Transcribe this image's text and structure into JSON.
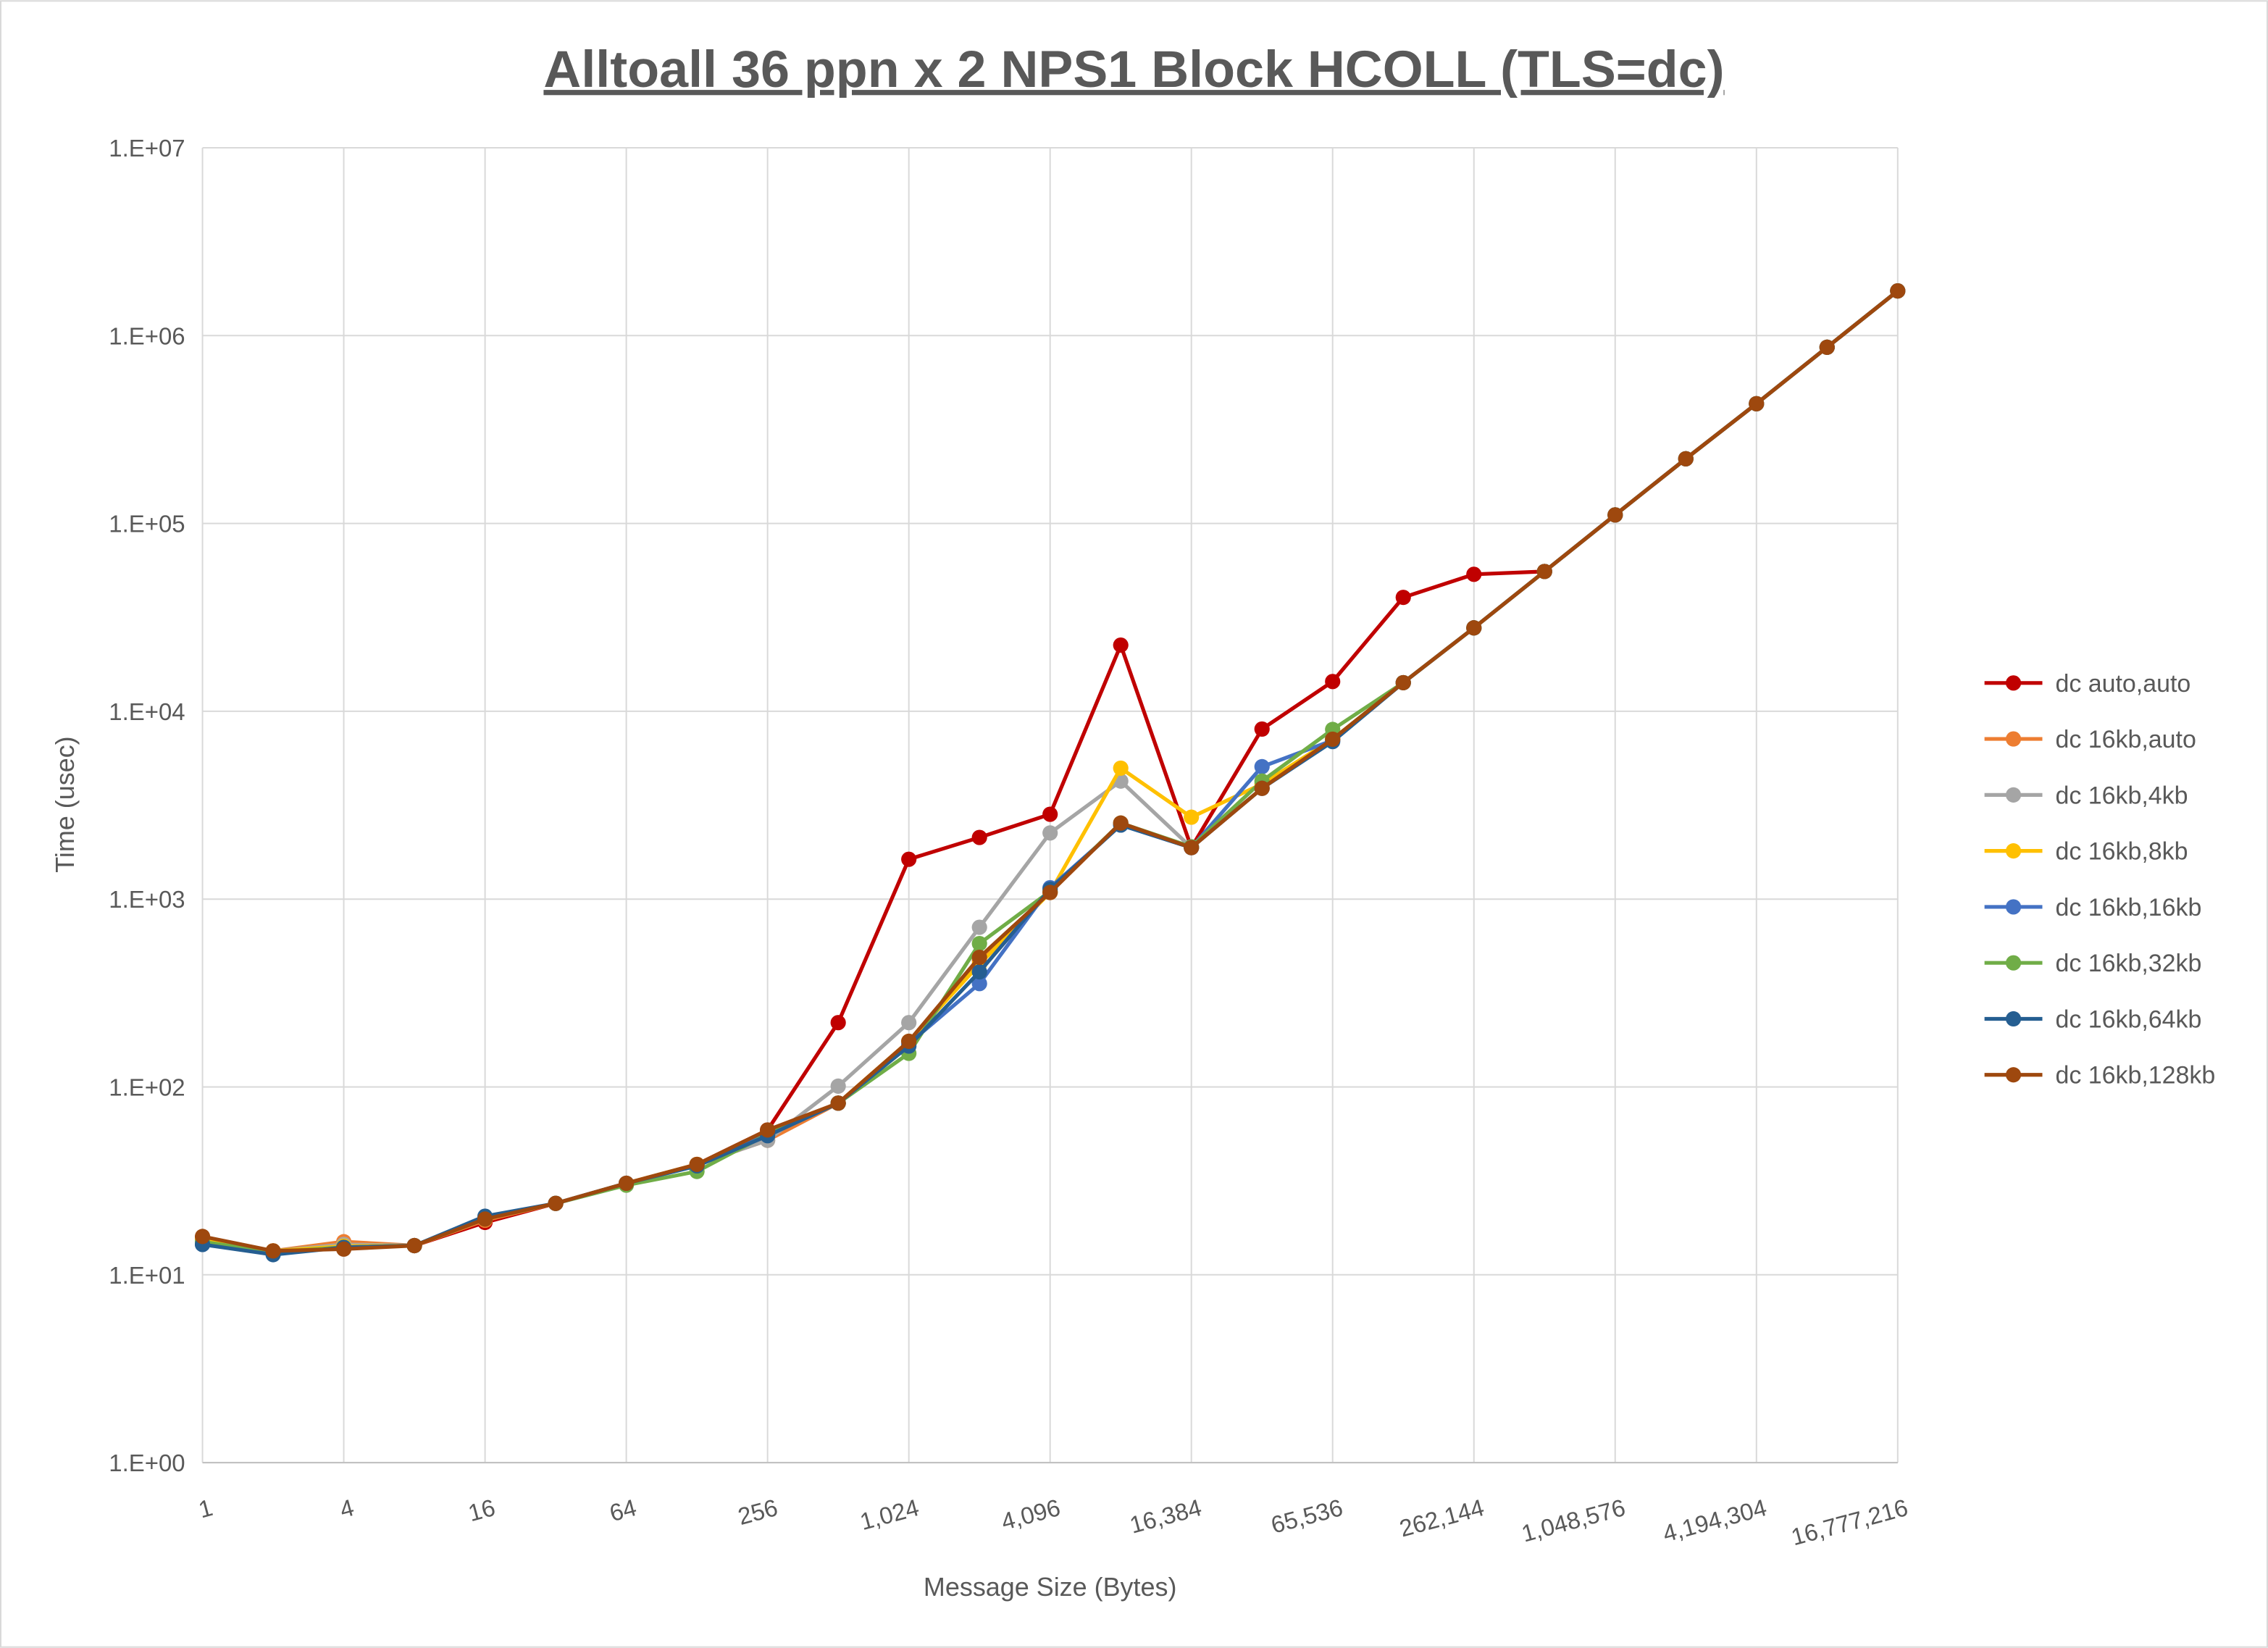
{
  "chart_data": {
    "type": "line",
    "title": "Alltoall 36 ppn x 2 NPS1 Block HCOLL (TLS=dc)",
    "xlabel": "Message Size (Bytes)",
    "ylabel": "Time (usec)",
    "x_scale": "log2",
    "y_scale": "log10",
    "xlim": [
      1,
      16777216
    ],
    "ylim": [
      1,
      10000000
    ],
    "grid": true,
    "legend_position": "right",
    "x": [
      1,
      2,
      4,
      8,
      16,
      32,
      64,
      128,
      256,
      512,
      1024,
      2048,
      4096,
      8192,
      16384,
      32768,
      65536,
      131072,
      262144,
      524288,
      1048576,
      2097152,
      4194304,
      8388608,
      16777216
    ],
    "x_tick_labels": [
      "1",
      "4",
      "16",
      "64",
      "256",
      "1,024",
      "4,096",
      "16,384",
      "65,536",
      "262,144",
      "1,048,576",
      "4,194,304",
      "16,777,216"
    ],
    "y_tick_labels": [
      "1.E+00",
      "1.E+01",
      "1.E+02",
      "1.E+03",
      "1.E+04",
      "1.E+05",
      "1.E+06",
      "1.E+07"
    ],
    "series": [
      {
        "name": "dc auto,auto",
        "color": "#C00000",
        "values": [
          15.5,
          13.4,
          14.2,
          14.3,
          19,
          24,
          30.7,
          38.7,
          59,
          220,
          1630,
          2130,
          2830,
          22500,
          1880,
          8040,
          14400,
          40400,
          53600,
          55500,
          111000,
          221000,
          434000,
          867000,
          1730000
        ]
      },
      {
        "name": "dc 16kb,auto",
        "color": "#ED7D31",
        "values": [
          15.5,
          13.4,
          15,
          14.3,
          19.5,
          24,
          30.7,
          38.7,
          52,
          82,
          175,
          470,
          1085,
          2540,
          1880,
          3890,
          7100,
          14200,
          27800,
          55500,
          111000,
          221000,
          434000,
          867000,
          1730000
        ]
      },
      {
        "name": "dc 16kb,4kb",
        "color": "#A5A5A5",
        "values": [
          15.5,
          13.4,
          14.5,
          14.3,
          19.8,
          24,
          30.7,
          38.7,
          52,
          101,
          220,
          708,
          2250,
          4250,
          1880,
          3890,
          7100,
          14200,
          27800,
          55500,
          111000,
          221000,
          434000,
          867000,
          1730000
        ]
      },
      {
        "name": "dc 16kb,8kb",
        "color": "#FFC000",
        "values": [
          15.5,
          13.4,
          14.2,
          14.3,
          19.8,
          24,
          30.7,
          38.7,
          57,
          82,
          175,
          450,
          1085,
          4980,
          2730,
          4100,
          7100,
          14200,
          27800,
          55500,
          111000,
          221000,
          434000,
          867000,
          1730000
        ]
      },
      {
        "name": "dc 16kb,16kb",
        "color": "#4472C4",
        "values": [
          14.5,
          13,
          14,
          14.3,
          20,
          24,
          30.7,
          38,
          56,
          82,
          170,
          355,
          1150,
          2480,
          1880,
          5070,
          7000,
          14200,
          27800,
          55500,
          111000,
          221000,
          434000,
          867000,
          1730000
        ]
      },
      {
        "name": "dc 16kb,32kb",
        "color": "#70AD47",
        "values": [
          15,
          13.2,
          14,
          14.3,
          20,
          24,
          30,
          35.5,
          56,
          82,
          151,
          580,
          1100,
          2540,
          1900,
          4250,
          8000,
          14200,
          27800,
          55500,
          111000,
          221000,
          434000,
          867000,
          1730000
        ]
      },
      {
        "name": "dc 16kb,64kb",
        "color": "#255E91",
        "values": [
          14.5,
          12.8,
          14,
          14.3,
          20.5,
          24,
          30.7,
          38,
          55,
          82,
          165,
          410,
          1130,
          2480,
          1880,
          3890,
          6900,
          14200,
          27800,
          55500,
          111000,
          221000,
          434000,
          867000,
          1730000
        ]
      },
      {
        "name": "dc 16kb,128kb",
        "color": "#9E480E",
        "values": [
          16,
          13.4,
          13.7,
          14.3,
          19.8,
          24,
          30.7,
          38.7,
          59,
          82,
          175,
          490,
          1085,
          2540,
          1880,
          3890,
          7100,
          14200,
          27800,
          55500,
          111000,
          221000,
          434000,
          867000,
          1730000
        ]
      }
    ]
  }
}
